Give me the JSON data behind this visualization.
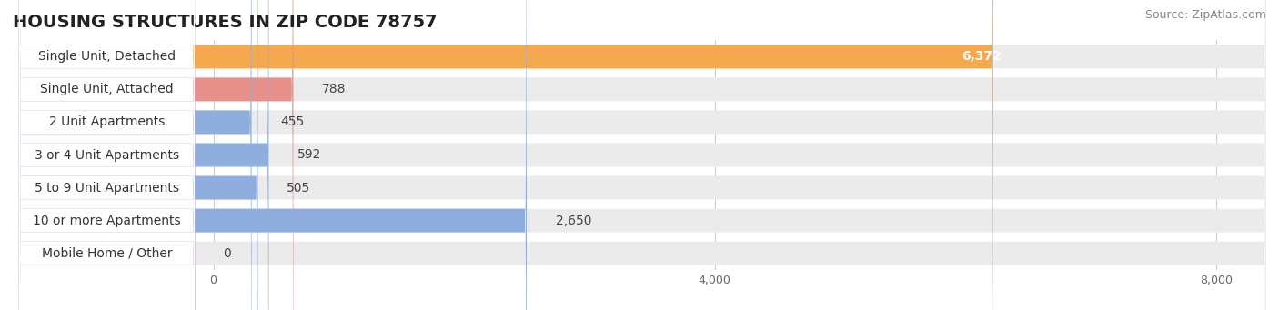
{
  "title": "HOUSING STRUCTURES IN ZIP CODE 78757",
  "source": "Source: ZipAtlas.com",
  "categories": [
    "Single Unit, Detached",
    "Single Unit, Attached",
    "2 Unit Apartments",
    "3 or 4 Unit Apartments",
    "5 to 9 Unit Apartments",
    "10 or more Apartments",
    "Mobile Home / Other"
  ],
  "values": [
    6372,
    788,
    455,
    592,
    505,
    2650,
    0
  ],
  "bar_colors": [
    "#F5A94E",
    "#E8908A",
    "#90AEDD",
    "#90AEDD",
    "#90AEDD",
    "#90AEDD",
    "#C4A8C8"
  ],
  "bar_bg_colors": [
    "#EBEBEB",
    "#EBEBEB",
    "#EBEBEB",
    "#EBEBEB",
    "#EBEBEB",
    "#EBEBEB",
    "#EBEBEB"
  ],
  "value_inside": [
    true,
    false,
    false,
    false,
    false,
    false,
    false
  ],
  "xlim_min": 0,
  "xlim_max": 8400,
  "xticks": [
    0,
    4000,
    8000
  ],
  "xticklabels": [
    "0",
    "4,000",
    "8,000"
  ],
  "title_fontsize": 14,
  "source_fontsize": 9,
  "label_fontsize": 10,
  "value_fontsize": 10,
  "background_color": "#ffffff",
  "row_bg_color": "#EBEBEB",
  "label_box_color": "#ffffff",
  "grid_color": "#cccccc",
  "value_inside_color": "#ffffff",
  "value_outside_color": "#444444"
}
